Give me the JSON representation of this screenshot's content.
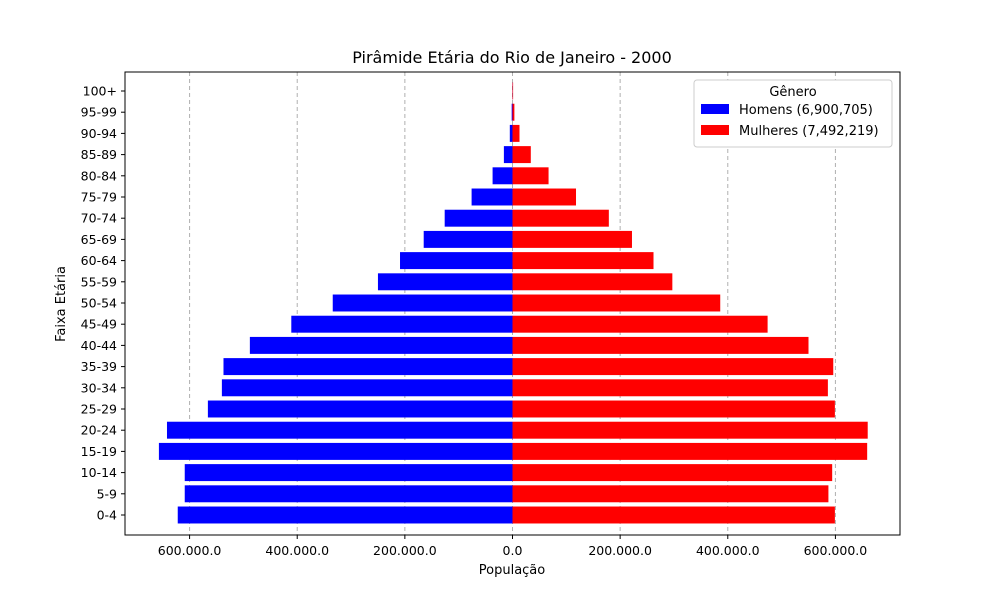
{
  "chart_data": {
    "type": "bar",
    "orientation": "horizontal",
    "title": "Pirâmide Etária do Rio de Janeiro - 2000",
    "xlabel": "População",
    "ylabel": "Faixa Etária",
    "categories": [
      "0-4",
      "5-9",
      "10-14",
      "15-19",
      "20-24",
      "25-29",
      "30-34",
      "35-39",
      "40-44",
      "45-49",
      "50-54",
      "55-59",
      "60-64",
      "65-69",
      "70-74",
      "75-79",
      "80-84",
      "85-89",
      "90-94",
      "95-99",
      "100+"
    ],
    "series": [
      {
        "name": "Homens (6,900,705)",
        "color": "#0000ff",
        "values": [
          -622000,
          -609000,
          -609000,
          -657000,
          -642000,
          -566000,
          -540000,
          -537000,
          -488000,
          -411000,
          -334000,
          -250000,
          -209000,
          -165000,
          -126000,
          -76000,
          -37000,
          -16000,
          -5000,
          -1500,
          -200
        ]
      },
      {
        "name": "Mulheres (7,492,219)",
        "color": "#ff0000",
        "values": [
          599000,
          587000,
          594000,
          659000,
          660000,
          599000,
          586000,
          596000,
          550000,
          474000,
          386000,
          297000,
          262000,
          222000,
          179000,
          118000,
          67000,
          34000,
          13000,
          3500,
          700
        ]
      }
    ],
    "xlim": [
      -720000,
      720000
    ],
    "xticks": [
      {
        "value": -600000,
        "label": "600.000.0"
      },
      {
        "value": -400000,
        "label": "400.000.0"
      },
      {
        "value": -200000,
        "label": "200.000.0"
      },
      {
        "value": 0,
        "label": "0.0"
      },
      {
        "value": 200000,
        "label": "200.000.0"
      },
      {
        "value": 400000,
        "label": "400.000.0"
      },
      {
        "value": 600000,
        "label": "600.000.0"
      }
    ],
    "grid": {
      "x": true,
      "y": false
    },
    "legend": {
      "title": "Gênero",
      "position": "top-right"
    }
  }
}
